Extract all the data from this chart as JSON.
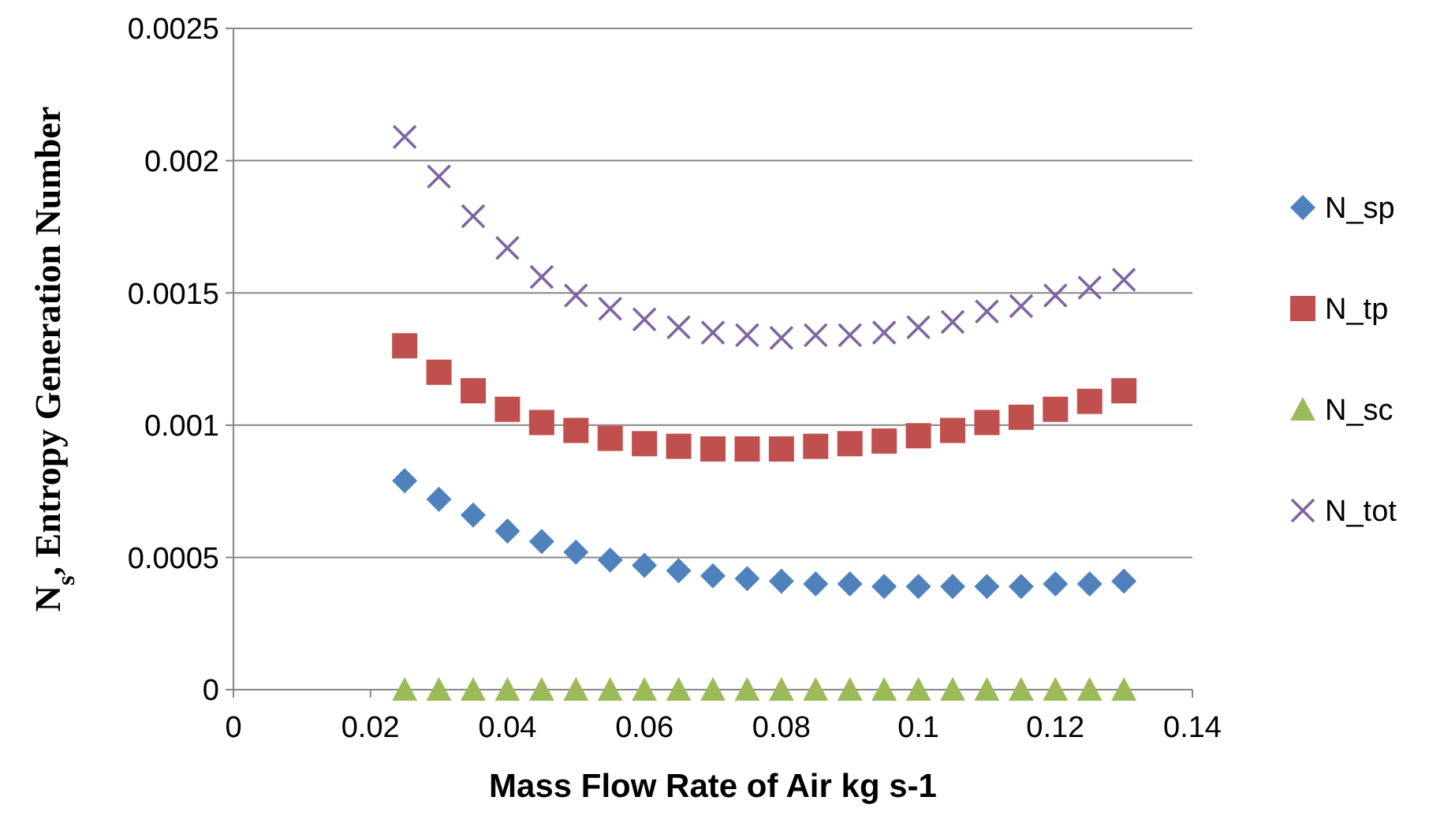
{
  "chart_data": {
    "type": "scatter",
    "xlabel": "Mass Flow Rate of Air kg s-1",
    "ylabel": "N$_{s}$, Entropy Generation Number",
    "x": [
      0.025,
      0.03,
      0.035,
      0.04,
      0.045,
      0.05,
      0.055,
      0.06,
      0.065,
      0.07,
      0.075,
      0.08,
      0.085,
      0.09,
      0.095,
      0.1,
      0.105,
      0.11,
      0.115,
      0.12,
      0.125,
      0.13
    ],
    "series": [
      {
        "name": "N_sp",
        "color": "#4f81bd",
        "marker": "diamond",
        "values": [
          0.00079,
          0.00072,
          0.00066,
          0.0006,
          0.00056,
          0.00052,
          0.00049,
          0.00047,
          0.00045,
          0.00043,
          0.00042,
          0.00041,
          0.0004,
          0.0004,
          0.00039,
          0.00039,
          0.00039,
          0.00039,
          0.00039,
          0.0004,
          0.0004,
          0.00041
        ]
      },
      {
        "name": "N_tp",
        "color": "#c0504d",
        "marker": "square",
        "values": [
          0.0013,
          0.0012,
          0.00113,
          0.00106,
          0.00101,
          0.00098,
          0.00095,
          0.00093,
          0.00092,
          0.00091,
          0.00091,
          0.00091,
          0.00092,
          0.00093,
          0.00094,
          0.00096,
          0.00098,
          0.00101,
          0.00103,
          0.00106,
          0.00109,
          0.00113
        ]
      },
      {
        "name": "N_sc",
        "color": "#9bbb59",
        "marker": "triangle",
        "values": [
          0,
          0,
          0,
          0,
          0,
          0,
          0,
          0,
          0,
          0,
          0,
          0,
          0,
          0,
          0,
          0,
          0,
          0,
          0,
          0,
          0,
          0
        ]
      },
      {
        "name": "N_tot",
        "color": "#8064a2",
        "marker": "cross",
        "values": [
          0.00209,
          0.00194,
          0.00179,
          0.00167,
          0.00156,
          0.00149,
          0.00144,
          0.0014,
          0.00137,
          0.00135,
          0.00134,
          0.00133,
          0.00134,
          0.00134,
          0.00135,
          0.00137,
          0.00139,
          0.00143,
          0.00145,
          0.00149,
          0.00152,
          0.00155
        ]
      }
    ],
    "xlim": [
      0,
      0.14
    ],
    "xticks": [
      0,
      0.02,
      0.04,
      0.06,
      0.08,
      0.1,
      0.12,
      0.14
    ],
    "ylim": [
      0,
      0.0025
    ],
    "yticks": [
      0,
      0.0005,
      0.001,
      0.0015,
      0.002,
      0.0025
    ],
    "grid": "y",
    "legend": "right"
  }
}
